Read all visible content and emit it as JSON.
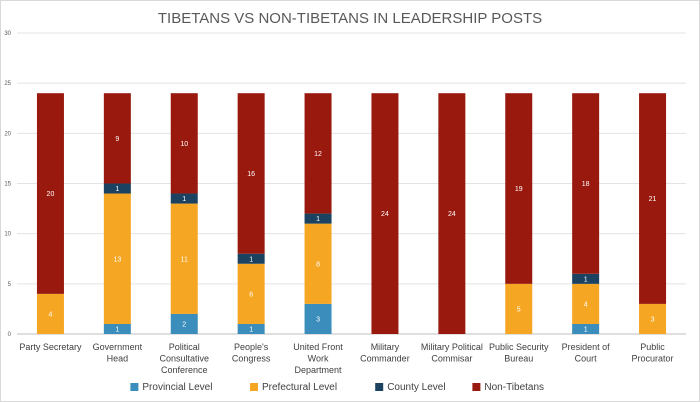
{
  "chart_data": {
    "type": "bar",
    "stacked": true,
    "title": "TIBETANS VS NON-TIBETANS IN LEADERSHIP POSTS",
    "xlabel": "",
    "ylabel": "",
    "ylim": [
      0,
      30
    ],
    "yticks": [
      0,
      5,
      10,
      15,
      20,
      25,
      30
    ],
    "grid": true,
    "legend_position": "bottom",
    "categories": [
      [
        "Party Secretary"
      ],
      [
        "Government",
        "Head"
      ],
      [
        "Political",
        "Consultative",
        "Conference"
      ],
      [
        "People's",
        "Congress"
      ],
      [
        "United Front",
        "Work",
        "Department"
      ],
      [
        "Military",
        "Commander"
      ],
      [
        "Military Political",
        "Commisar"
      ],
      [
        "Public Security",
        "Bureau"
      ],
      [
        "President of",
        "Court"
      ],
      [
        "Public",
        "Procurator"
      ]
    ],
    "series": [
      {
        "name": "Provincial Level",
        "color": "#3b8ebb",
        "label_color": "#ffffff",
        "values": [
          0,
          1,
          2,
          1,
          3,
          0,
          0,
          0,
          1,
          0
        ]
      },
      {
        "name": "Prefectural Level",
        "color": "#f5a623",
        "label_color": "#ffffff",
        "values": [
          4,
          13,
          11,
          6,
          8,
          0,
          0,
          5,
          4,
          3
        ]
      },
      {
        "name": "County Level",
        "color": "#1b4361",
        "label_color": "#ffffff",
        "values": [
          0,
          1,
          1,
          1,
          1,
          0,
          0,
          0,
          1,
          0
        ]
      },
      {
        "name": "Non-Tibetans",
        "color": "#99190e",
        "label_color": "#ffffff",
        "values": [
          20,
          9,
          10,
          16,
          12,
          24,
          24,
          19,
          18,
          21
        ]
      }
    ]
  }
}
